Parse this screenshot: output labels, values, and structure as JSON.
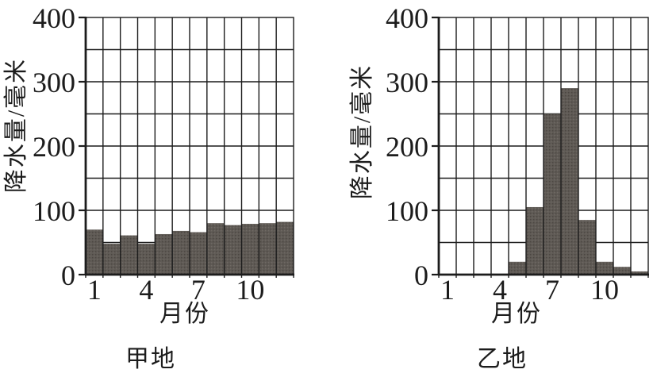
{
  "figure": {
    "description": "Two monthly precipitation bar charts on graph-paper grids",
    "background": "#ffffff",
    "ink_color": "#1c1c1c",
    "bar_color": "#5f5a55"
  },
  "chart_data": [
    {
      "type": "bar",
      "id": "jia-di",
      "title": "甲地",
      "xlabel": "月份",
      "ylabel": "降水量/毫米",
      "categories": [
        1,
        2,
        3,
        4,
        5,
        6,
        7,
        8,
        9,
        10,
        11,
        12
      ],
      "values": [
        70,
        48,
        61,
        48,
        63,
        68,
        66,
        80,
        77,
        79,
        80,
        82
      ],
      "ylim": [
        0,
        400
      ],
      "y_tick_labels": [
        "400",
        "300",
        "200",
        "100",
        "0"
      ],
      "y_tick_values": [
        400,
        300,
        200,
        100,
        0
      ],
      "y_grid_step": 50,
      "x_tick_labels": [
        "1",
        "4",
        "7",
        "10"
      ],
      "x_tick_months": [
        1,
        4,
        7,
        10
      ],
      "grid": "full grid: one column per month, one row per 50 mm",
      "legend": "none"
    },
    {
      "type": "bar",
      "id": "yi-di",
      "title": "乙地",
      "xlabel": "月份",
      "ylabel": "降水量/毫米",
      "categories": [
        1,
        2,
        3,
        4,
        5,
        6,
        7,
        8,
        9,
        10,
        11,
        12
      ],
      "values": [
        0,
        0,
        0,
        0,
        20,
        105,
        250,
        290,
        85,
        20,
        12,
        5
      ],
      "ylim": [
        0,
        400
      ],
      "y_tick_labels": [
        "400",
        "300",
        "200",
        "100",
        "0"
      ],
      "y_tick_values": [
        400,
        300,
        200,
        100,
        0
      ],
      "y_grid_step": 50,
      "x_tick_labels": [
        "1",
        "4",
        "7",
        "10"
      ],
      "x_tick_months": [
        1,
        4,
        7,
        10
      ],
      "grid": "full grid: one column per month, one row per 50 mm",
      "legend": "none"
    }
  ]
}
